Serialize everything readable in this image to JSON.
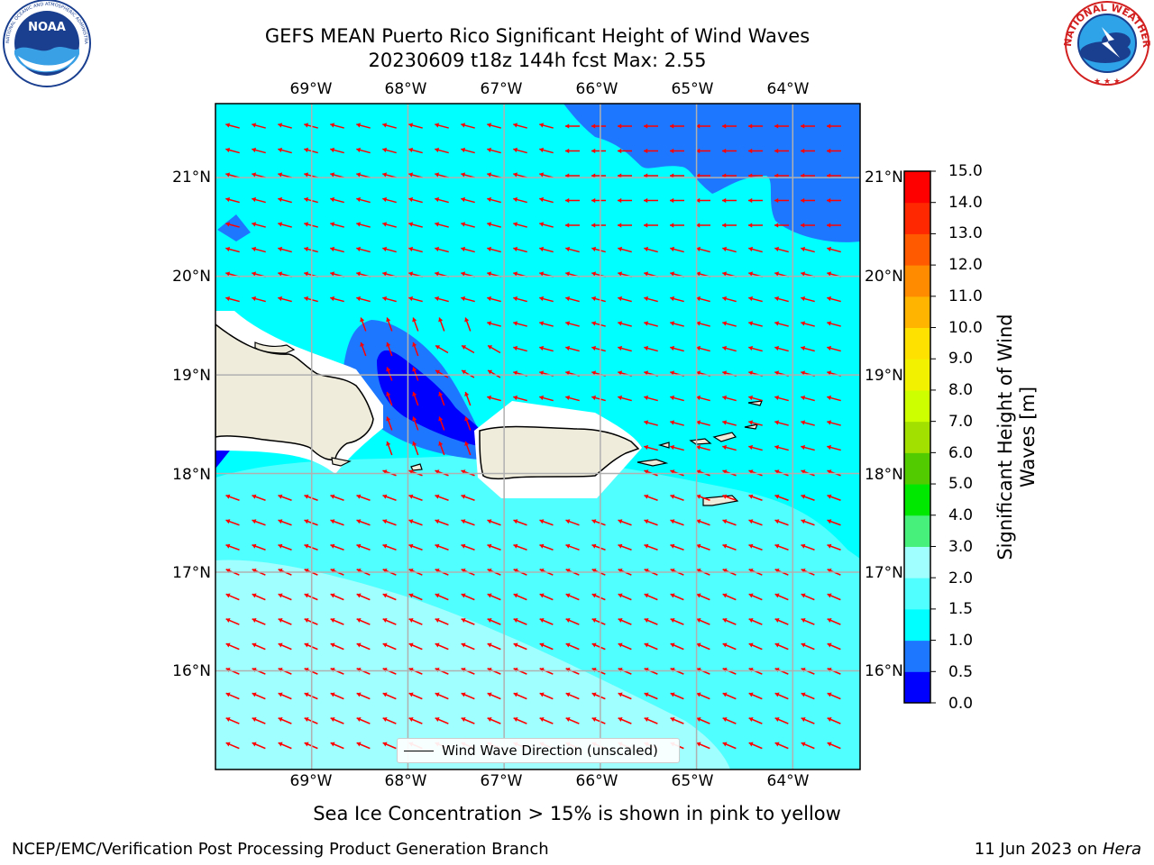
{
  "title": {
    "line1": "GEFS MEAN Puerto Rico Significant Height of Wind Waves",
    "line2": "20230609 t18z 144h fcst   Max: 2.55"
  },
  "logos": {
    "left": {
      "icon": "noaa-logo",
      "text": "NOAA",
      "ring_text": "NATIONAL OCEANIC AND ATMOSPHERIC ADMINISTRATION · U.S. DEPARTMENT OF COMMERCE"
    },
    "right": {
      "icon": "nws-logo",
      "ring_text": "NATIONAL WEATHER SERVICE"
    }
  },
  "map": {
    "lon_labels": [
      "69°W",
      "68°W",
      "67°W",
      "66°W",
      "65°W",
      "64°W"
    ],
    "lat_labels": [
      "21°N",
      "20°N",
      "19°N",
      "18°N",
      "17°N",
      "16°N"
    ],
    "lon_values": [
      -69,
      -68,
      -67,
      -66,
      -65,
      -64
    ],
    "lat_values": [
      21,
      20,
      19,
      18,
      17,
      16
    ],
    "extent": {
      "lon_min": -70.0,
      "lon_max": -63.3,
      "lat_min": 15.0,
      "lat_max": 21.75
    },
    "arrow_color": "#ff0000",
    "land_color": "#efecdc",
    "gridline_color": "#b0b0b0"
  },
  "legend": {
    "label": "Wind Wave Direction (unscaled)"
  },
  "colorbar": {
    "title": "Significant Height of Wind Waves [m]",
    "labels": [
      "15.0",
      "14.0",
      "13.0",
      "12.0",
      "11.0",
      "10.0",
      "9.0",
      "8.0",
      "7.0",
      "6.0",
      "5.0",
      "4.0",
      "3.0",
      "2.0",
      "1.5",
      "1.0",
      "0.5",
      "0.0"
    ],
    "levels": [
      0.0,
      0.5,
      1.0,
      1.5,
      2.0,
      3.0,
      4.0,
      5.0,
      6.0,
      7.0,
      8.0,
      9.0,
      10.0,
      11.0,
      12.0,
      13.0,
      14.0,
      15.0
    ],
    "colors": [
      "#0000ff",
      "#1e78ff",
      "#00ffff",
      "#50ffff",
      "#a0ffff",
      "#46f07a",
      "#00e800",
      "#52cc00",
      "#a2e000",
      "#cdff00",
      "#f2f200",
      "#ffe100",
      "#ffb400",
      "#ff8c00",
      "#ff5a00",
      "#ff2800",
      "#ff0000"
    ]
  },
  "bottom_note": "Sea Ice Concentration > 15% is shown in pink to yellow",
  "footer": {
    "left": "NCEP/EMC/Verification Post Processing Product Generation Branch",
    "right_prefix": "11 Jun 2023 on ",
    "right_machine": "Hera"
  }
}
